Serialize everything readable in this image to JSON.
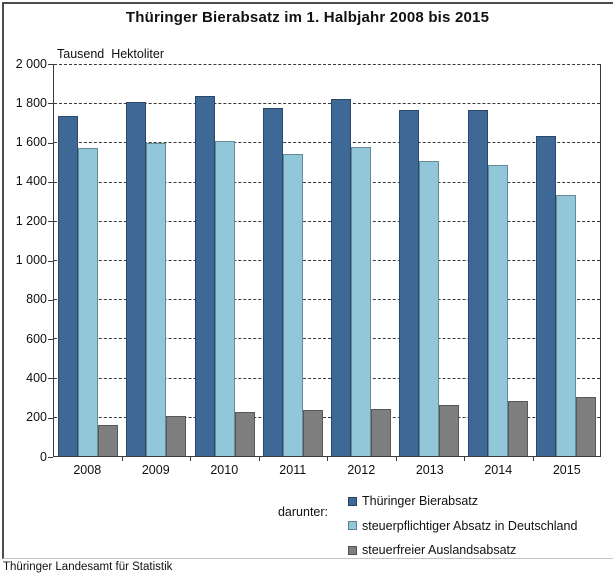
{
  "title": "Thüringer Bierabsatz im 1. Halbjahr 2008 bis 2015",
  "unit_label": "Tausend  Hektoliter",
  "footer": "Thüringer Landesamt für Statistik",
  "legend": {
    "prefix": "darunter:",
    "position": "bottom-right"
  },
  "chart_data": {
    "type": "bar",
    "title": "Thüringer Bierabsatz im 1. Halbjahr 2008 bis 2015",
    "ylabel": "Tausend Hektoliter",
    "xlabel": "",
    "categories": [
      "2008",
      "2009",
      "2010",
      "2011",
      "2012",
      "2013",
      "2014",
      "2015"
    ],
    "series": [
      {
        "name": "Thüringer Bierabsatz",
        "color": "#3e6896",
        "values": [
          1735,
          1805,
          1835,
          1775,
          1820,
          1765,
          1765,
          1633
        ]
      },
      {
        "name": "steuerpflichtiger Absatz in Deutschland",
        "color": "#92c7da",
        "values": [
          1570,
          1595,
          1605,
          1540,
          1575,
          1505,
          1485,
          1331
        ]
      },
      {
        "name": "steuerfreier Auslandsabsatz",
        "color": "#7e7e7e",
        "values": [
          160,
          205,
          225,
          235,
          240,
          260,
          280,
          302
        ]
      }
    ],
    "ylim": [
      0,
      2000
    ],
    "ytick_step": 200,
    "ytick_labels": [
      "0",
      "200",
      "400",
      "600",
      "800",
      "1 000",
      "1 200",
      "1 400",
      "1 600",
      "1 800",
      "2 000"
    ],
    "grid": "horizontal-dashed",
    "legend_position": "bottom-right"
  }
}
